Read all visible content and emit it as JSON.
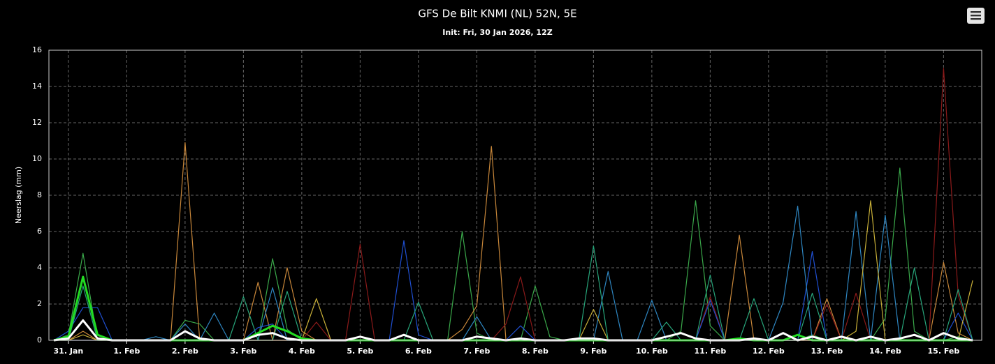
{
  "chart_data": {
    "type": "line",
    "title": "GFS De Bilt KNMI (NL) 52N, 5E",
    "subtitle": "Init: Fri, 30 Jan 2026, 12Z",
    "y_label": "Neerslag (mm)",
    "categories": [
      null,
      "31. Jan",
      null,
      null,
      null,
      "1. Feb",
      null,
      null,
      null,
      "2. Feb",
      null,
      null,
      null,
      "3. Feb",
      null,
      null,
      null,
      "4. Feb",
      null,
      null,
      null,
      "5. Feb",
      null,
      null,
      null,
      "6. Feb",
      null,
      null,
      null,
      "7. Feb",
      null,
      null,
      null,
      "8. Feb",
      null,
      null,
      null,
      "9. Feb",
      null,
      null,
      null,
      "10. Feb",
      null,
      null,
      null,
      "11. Feb",
      null,
      null,
      null,
      "12. Feb",
      null,
      null,
      null,
      "13. Feb",
      null,
      null,
      null,
      "14. Feb",
      null,
      null,
      null,
      "15. Feb",
      null,
      null
    ],
    "ylim": [
      0,
      16
    ],
    "yticks": [
      0,
      2,
      4,
      6,
      8,
      10,
      12,
      14,
      16
    ],
    "grid": true,
    "series": [
      {
        "color": "#3aa84a",
        "width": 1.2,
        "values": [
          0,
          0.3,
          4.8,
          0,
          0,
          0,
          0,
          0,
          0,
          1.1,
          0.9,
          0,
          0,
          0,
          0,
          4.5,
          0.6,
          0,
          0,
          0,
          0,
          0,
          0,
          0,
          0,
          0,
          0,
          0,
          6.0,
          0.4,
          0,
          0,
          0,
          3.0,
          0.2,
          0,
          0,
          0,
          0,
          0,
          0,
          0,
          0,
          0.5,
          7.7,
          0.8,
          0,
          0,
          0,
          0,
          0,
          0,
          0.3,
          0,
          0,
          0,
          0,
          1.2,
          9.5,
          0.5,
          0,
          0,
          0.2,
          0
        ]
      },
      {
        "color": "#c8873a",
        "width": 1.2,
        "values": [
          0,
          0,
          0.5,
          0,
          0,
          0,
          0,
          0,
          0,
          10.9,
          0,
          0,
          0,
          0,
          3.2,
          0,
          4.0,
          0.5,
          0,
          0,
          0,
          0,
          0,
          0,
          0,
          0,
          0,
          0,
          0.6,
          1.9,
          10.7,
          0,
          0,
          0,
          0,
          0,
          0,
          0,
          0,
          0,
          0,
          0,
          0,
          0,
          0,
          0,
          0,
          5.8,
          0,
          0,
          0,
          0,
          0,
          2.3,
          0,
          0,
          0,
          0,
          0,
          0,
          0,
          4.3,
          0.4,
          0
        ]
      },
      {
        "color": "#8b1a1a",
        "width": 1.2,
        "values": [
          0,
          0,
          0,
          0,
          0,
          0,
          0,
          0,
          0,
          0,
          0,
          0,
          0,
          0,
          0,
          0,
          0,
          0,
          1.0,
          0,
          0,
          5.3,
          0,
          0,
          0,
          0,
          0,
          0,
          0,
          0,
          0,
          0.9,
          3.5,
          0,
          0,
          0,
          0,
          0,
          0,
          0,
          0,
          0,
          0,
          0,
          0,
          2.4,
          0,
          0,
          0,
          0,
          0,
          0,
          0,
          2.0,
          0,
          2.6,
          0,
          0,
          0,
          0,
          0,
          15.0,
          2.5,
          0
        ]
      },
      {
        "color": "#1f4fd1",
        "width": 1.2,
        "values": [
          0,
          0.5,
          1.8,
          1.8,
          0,
          0,
          0,
          0,
          0,
          0,
          0,
          0,
          0,
          0,
          0.7,
          0.9,
          0,
          0,
          0,
          0,
          0,
          0,
          0,
          0,
          5.5,
          0.3,
          0,
          0,
          0,
          0,
          0,
          0,
          0.8,
          0,
          0,
          0,
          0,
          0,
          0,
          0,
          0,
          0,
          0,
          0,
          0,
          2.2,
          0,
          0,
          0,
          0,
          0,
          0,
          4.9,
          0,
          0,
          0,
          0,
          0,
          0,
          0,
          0,
          0,
          1.5,
          0
        ]
      },
      {
        "color": "#2e86c1",
        "width": 1.2,
        "values": [
          0,
          0,
          0,
          0,
          0,
          0,
          0,
          0.2,
          0,
          0.9,
          0,
          1.5,
          0,
          0,
          0,
          2.9,
          0,
          0,
          0,
          0,
          0,
          0,
          0,
          0,
          0,
          0,
          0,
          0,
          0,
          1.3,
          0,
          0,
          0,
          0,
          0,
          0,
          0,
          0,
          3.8,
          0,
          0,
          2.2,
          0,
          0,
          0,
          0,
          0,
          0,
          0,
          0,
          2.1,
          7.4,
          0,
          0,
          0,
          7.1,
          0,
          6.9,
          0,
          0,
          0,
          0,
          0,
          0
        ]
      },
      {
        "color": "#c9b038",
        "width": 1.2,
        "values": [
          0,
          0,
          0.3,
          0,
          0,
          0,
          0,
          0,
          0,
          0,
          0,
          0,
          0,
          0,
          0,
          0,
          0,
          0,
          2.3,
          0,
          0,
          0,
          0,
          0,
          0,
          0,
          0,
          0,
          0,
          0,
          0,
          0,
          0,
          0,
          0,
          0,
          0,
          1.7,
          0,
          0,
          0,
          0,
          0,
          0,
          0,
          0,
          0,
          0,
          0,
          0,
          0,
          0,
          0,
          0,
          0,
          0.5,
          7.7,
          0,
          0,
          0,
          0,
          0,
          0,
          3.3
        ]
      },
      {
        "color": "#27a57a",
        "width": 1.2,
        "values": [
          0,
          0,
          3.0,
          0,
          0,
          0,
          0,
          0,
          0,
          0,
          0,
          0,
          0,
          2.4,
          0,
          0,
          2.7,
          0,
          0,
          0,
          0,
          0,
          0,
          0,
          0,
          2.1,
          0,
          0,
          0,
          0,
          0,
          0,
          0,
          0,
          0,
          0,
          0,
          5.2,
          0,
          0,
          0,
          0,
          1.0,
          0,
          0,
          3.6,
          0,
          0,
          2.3,
          0,
          0,
          0,
          2.6,
          0,
          0,
          0,
          0,
          0,
          0,
          4.0,
          0,
          0,
          2.8,
          0
        ]
      },
      {
        "color": "#22dd22",
        "width": 3,
        "values": [
          0,
          0.2,
          3.5,
          0.3,
          0,
          0,
          0,
          0,
          0,
          0,
          0,
          0,
          0,
          0,
          0.4,
          0.8,
          0.5,
          0.1,
          0,
          0,
          0,
          0,
          0,
          0,
          0,
          0,
          0,
          0,
          0,
          0,
          0,
          0,
          0,
          0,
          0,
          0,
          0,
          0,
          0,
          0,
          0,
          0,
          0,
          0,
          0,
          0,
          0,
          0.1,
          0,
          0,
          0,
          0.3,
          0,
          0,
          0,
          0,
          0,
          0,
          0,
          0,
          0,
          0,
          0,
          0
        ]
      },
      {
        "color": "#ffffff",
        "width": 3,
        "values": [
          0,
          0.1,
          1.1,
          0.1,
          0,
          0,
          0,
          0,
          0,
          0.5,
          0.1,
          0,
          0,
          0,
          0.3,
          0.4,
          0.1,
          0,
          0,
          0,
          0,
          0.2,
          0,
          0,
          0.3,
          0,
          0,
          0,
          0,
          0.2,
          0.1,
          0,
          0.1,
          0,
          0,
          0,
          0.1,
          0.1,
          0,
          0,
          0,
          0,
          0.2,
          0.4,
          0.1,
          0,
          0,
          0,
          0.1,
          0,
          0.4,
          0,
          0.2,
          0,
          0.2,
          0,
          0.2,
          0,
          0.1,
          0.3,
          0,
          0.4,
          0.1,
          0
        ]
      }
    ]
  }
}
